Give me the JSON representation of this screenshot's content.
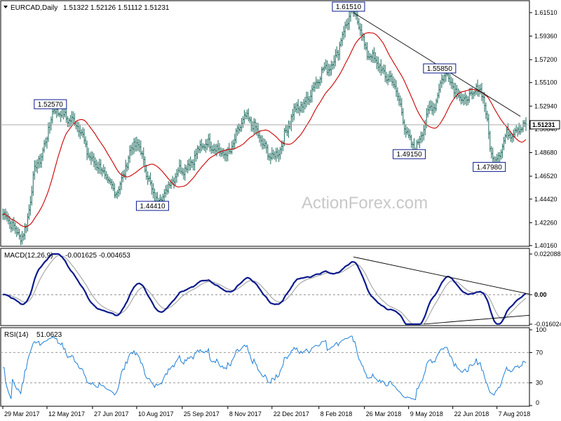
{
  "chart_data": [
    {
      "type": "ohlc",
      "panel": "price",
      "header": {
        "symbol": "EURCAD,Daily",
        "ohlc_text": "1.51322 1.52126 1.51112 1.51231"
      },
      "ylim": [
        1.4016,
        1.6151
      ],
      "yticks": [
        "1.61510",
        "1.59360",
        "1.57200",
        "1.55100",
        "1.52940",
        "1.50840",
        "1.48680",
        "1.46520",
        "1.44420",
        "1.42260",
        "1.40160"
      ],
      "last_price": "1.51231",
      "last_price_value": 1.51231,
      "annotations": [
        {
          "text": "1.52570",
          "date_index": 38,
          "price": 1.5257
        },
        {
          "text": "1.44410",
          "date_index": 112,
          "price": 1.4441
        },
        {
          "text": "1.61510",
          "date_index": 254,
          "price": 1.6151
        },
        {
          "text": "1.49150",
          "date_index": 298,
          "price": 1.4915
        },
        {
          "text": "1.55850",
          "date_index": 320,
          "price": 1.5585
        },
        {
          "text": "1.47980",
          "date_index": 356,
          "price": 1.4798
        }
      ],
      "trendline": {
        "from": {
          "date_index": 254,
          "price": 1.6151
        },
        "to": {
          "date_index": 375,
          "price": 1.52
        }
      },
      "moving_average_color": "#cc0000",
      "bar_color": "#1f6b5f",
      "watermark": "ActionForex.com"
    },
    {
      "type": "line",
      "panel": "macd",
      "header": {
        "name": "MACD(12,26,9)",
        "values": "-0.001625 -0.004653"
      },
      "ylim": [
        -0.016024,
        0.022088
      ],
      "yticks": [
        "0.022088",
        "0.00",
        "-0.016024"
      ],
      "zero": 0,
      "series": [
        {
          "name": "MACD",
          "color": "#0a1a8c"
        },
        {
          "name": "Signal",
          "color": "#9a9a9a"
        }
      ],
      "trendlines": [
        {
          "from": {
            "date_index": 254,
            "value": 0.0205
          },
          "to": {
            "date_index": 385,
            "value": 0.0003
          }
        },
        {
          "from": {
            "date_index": 305,
            "value": -0.016
          },
          "to": {
            "date_index": 385,
            "value": -0.0112
          }
        }
      ]
    },
    {
      "type": "line",
      "panel": "rsi",
      "header": {
        "name": "RSI(14)",
        "values": "51.0623"
      },
      "ylim": [
        0,
        100
      ],
      "yticks": [
        "100",
        "70",
        "30",
        "0"
      ],
      "levels": [
        70,
        30
      ],
      "series": [
        {
          "name": "RSI",
          "color": "#1e7fd6"
        }
      ]
    }
  ],
  "x_axis": {
    "labels": [
      {
        "text": "29 Mar 2017",
        "date_index": 0
      },
      {
        "text": "12 May 2017",
        "date_index": 32
      },
      {
        "text": "27 Jun 2017",
        "date_index": 65
      },
      {
        "text": "10 Aug 2017",
        "date_index": 97
      },
      {
        "text": "25 Sep 2017",
        "date_index": 130
      },
      {
        "text": "8 Nov 2017",
        "date_index": 163
      },
      {
        "text": "22 Dec 2017",
        "date_index": 195
      },
      {
        "text": "8 Feb 2018",
        "date_index": 229
      },
      {
        "text": "26 Mar 2018",
        "date_index": 262
      },
      {
        "text": "9 May 2018",
        "date_index": 294
      },
      {
        "text": "22 Jun 2018",
        "date_index": 326
      },
      {
        "text": "7 Aug 2018",
        "date_index": 358
      }
    ],
    "count": 380
  }
}
